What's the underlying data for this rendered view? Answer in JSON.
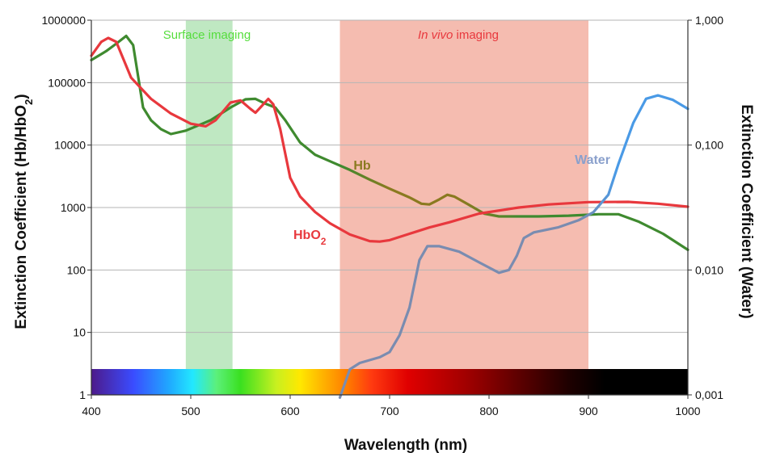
{
  "chart_data": {
    "type": "line",
    "xlabel": "Wavelength (nm)",
    "ylabel_left": "Extinction Coefficient (Hb/HbO2)",
    "ylabel_right": "Extinction Coefficient (Water)",
    "x_ticks": [
      "400",
      "500",
      "600",
      "700",
      "800",
      "900",
      "1000"
    ],
    "y_left_ticks": [
      "1",
      "10",
      "100",
      "1000",
      "10000",
      "100000",
      "1000000"
    ],
    "y_right_ticks": [
      "0.001",
      "0.010",
      "0.100",
      "1.000"
    ],
    "xlim": [
      400,
      1000
    ],
    "ylim_left": [
      1,
      1000000
    ],
    "ylim_right": [
      0.001,
      1
    ],
    "y_scale": "log",
    "grid": "horizontal",
    "bands": [
      {
        "label": "Surface imaging",
        "x_start": 495,
        "x_end": 542,
        "color": "#bfe8c2",
        "text_color": "#55dd3c"
      },
      {
        "label_italic": "In vivo",
        "label": " imaging",
        "x_start": 650,
        "x_end": 900,
        "color": "#f5bcb0",
        "text_color": "#e8383d"
      }
    ],
    "spectrum_bar": true,
    "series": [
      {
        "name": "Hb",
        "axis": "left",
        "color": "#3f8a2f",
        "color_alt": "#8a7a20",
        "points": [
          [
            400,
            230000
          ],
          [
            415,
            320000
          ],
          [
            425,
            420000
          ],
          [
            435,
            560000
          ],
          [
            442,
            400000
          ],
          [
            452,
            40000
          ],
          [
            460,
            25000
          ],
          [
            470,
            18000
          ],
          [
            480,
            15000
          ],
          [
            495,
            17000
          ],
          [
            520,
            25000
          ],
          [
            540,
            40000
          ],
          [
            555,
            54000
          ],
          [
            565,
            55000
          ],
          [
            575,
            46000
          ],
          [
            585,
            40000
          ],
          [
            595,
            25000
          ],
          [
            610,
            11000
          ],
          [
            625,
            7000
          ],
          [
            640,
            5500
          ],
          [
            660,
            4000
          ],
          [
            680,
            2800
          ],
          [
            700,
            2000
          ],
          [
            720,
            1450
          ],
          [
            732,
            1150
          ],
          [
            740,
            1120
          ],
          [
            750,
            1350
          ],
          [
            758,
            1600
          ],
          [
            765,
            1500
          ],
          [
            780,
            1100
          ],
          [
            795,
            800
          ],
          [
            810,
            720
          ],
          [
            850,
            720
          ],
          [
            880,
            740
          ],
          [
            910,
            780
          ],
          [
            930,
            780
          ],
          [
            950,
            600
          ],
          [
            975,
            380
          ],
          [
            1000,
            210
          ]
        ]
      },
      {
        "name": "HbO",
        "name_sub": "2",
        "axis": "left",
        "color": "#e8383d",
        "points": [
          [
            400,
            270000
          ],
          [
            410,
            450000
          ],
          [
            417,
            520000
          ],
          [
            425,
            450000
          ],
          [
            440,
            120000
          ],
          [
            460,
            55000
          ],
          [
            480,
            32000
          ],
          [
            500,
            22000
          ],
          [
            515,
            20000
          ],
          [
            525,
            25000
          ],
          [
            540,
            48000
          ],
          [
            550,
            52000
          ],
          [
            560,
            38000
          ],
          [
            565,
            33000
          ],
          [
            570,
            40000
          ],
          [
            578,
            55000
          ],
          [
            583,
            45000
          ],
          [
            590,
            18000
          ],
          [
            600,
            3000
          ],
          [
            610,
            1500
          ],
          [
            625,
            850
          ],
          [
            640,
            560
          ],
          [
            660,
            370
          ],
          [
            680,
            290
          ],
          [
            690,
            285
          ],
          [
            700,
            300
          ],
          [
            720,
            380
          ],
          [
            740,
            480
          ],
          [
            760,
            580
          ],
          [
            790,
            800
          ],
          [
            830,
            1000
          ],
          [
            860,
            1120
          ],
          [
            900,
            1220
          ],
          [
            940,
            1230
          ],
          [
            970,
            1150
          ],
          [
            1000,
            1030
          ]
        ]
      },
      {
        "name": "Water",
        "axis": "right",
        "color": "#7a8cb0",
        "color_alt": "#4a9ae6",
        "points": [
          [
            650,
            0.00095
          ],
          [
            660,
            0.0016
          ],
          [
            670,
            0.0018
          ],
          [
            690,
            0.002
          ],
          [
            700,
            0.0022
          ],
          [
            710,
            0.003
          ],
          [
            720,
            0.005
          ],
          [
            730,
            0.012
          ],
          [
            738,
            0.0155
          ],
          [
            750,
            0.0155
          ],
          [
            770,
            0.014
          ],
          [
            790,
            0.0115
          ],
          [
            810,
            0.0095
          ],
          [
            820,
            0.01
          ],
          [
            828,
            0.013
          ],
          [
            835,
            0.018
          ],
          [
            845,
            0.02
          ],
          [
            870,
            0.022
          ],
          [
            890,
            0.025
          ],
          [
            905,
            0.029
          ],
          [
            920,
            0.04
          ],
          [
            930,
            0.07
          ],
          [
            945,
            0.15
          ],
          [
            958,
            0.235
          ],
          [
            970,
            0.25
          ],
          [
            985,
            0.23
          ],
          [
            1000,
            0.195
          ]
        ]
      }
    ]
  }
}
